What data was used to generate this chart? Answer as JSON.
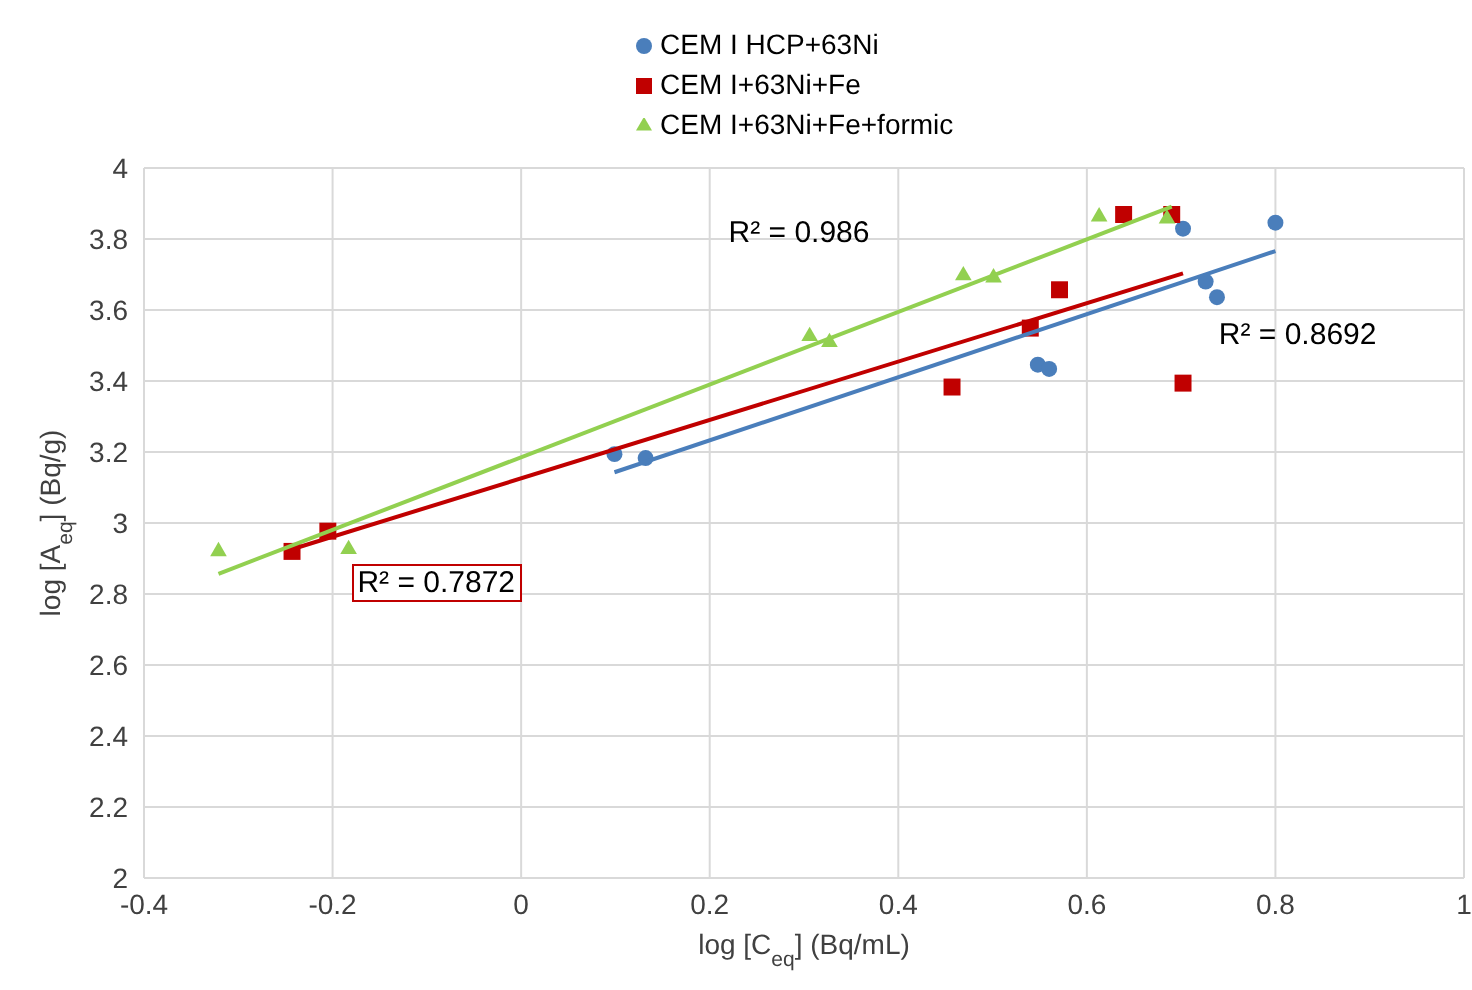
{
  "chart_data": {
    "type": "scatter",
    "xlabel": "log [C$_{eq}$] (Bq/mL)",
    "ylabel": "log [A$_{eq}$] (Bq/g)",
    "xlim": [
      -0.4,
      1
    ],
    "xticks": [
      -0.4,
      -0.2,
      0,
      0.2,
      0.4,
      0.6,
      0.8,
      1
    ],
    "ylim": [
      2,
      4
    ],
    "yticks": [
      2,
      2.2,
      2.4,
      2.6,
      2.8,
      3,
      3.2,
      3.4,
      3.6,
      3.8,
      4
    ],
    "grid": true,
    "legend": "top",
    "annotations": [
      "R² = 0.986",
      "R² = 0.8692",
      "R² = 0.7872"
    ],
    "series": [
      {
        "name": "CEM I HCP+63Ni",
        "color": "#4a7ebb",
        "marker": "circle",
        "x": [
          0.099,
          0.132,
          0.548,
          0.56,
          0.702,
          0.726,
          0.738,
          0.8
        ],
        "values": [
          3.194,
          3.183,
          3.446,
          3.434,
          3.829,
          3.68,
          3.636,
          3.846
        ]
      },
      {
        "name": "CEM I+63Ni+Fe",
        "color": "#c00000",
        "marker": "square",
        "x": [
          -0.243,
          -0.205,
          0.457,
          0.54,
          0.571,
          0.639,
          0.69,
          0.702
        ],
        "values": [
          2.92,
          2.977,
          3.383,
          3.549,
          3.657,
          3.869,
          3.869,
          3.394
        ]
      },
      {
        "name": "CEM I+63Ni+Fe+formic",
        "color": "#92d050",
        "marker": "triangle",
        "x": [
          -0.321,
          -0.183,
          0.306,
          0.327,
          0.469,
          0.501,
          0.613,
          0.685
        ],
        "values": [
          2.92,
          2.926,
          3.526,
          3.509,
          3.697,
          3.691,
          3.863,
          3.857
        ]
      },
      {
        "type": "line",
        "color": "#4a7ebb",
        "x": [
          0.099,
          0.8
        ],
        "values": [
          3.143,
          3.766
        ]
      },
      {
        "type": "line",
        "color": "#c00000",
        "x": [
          -0.243,
          0.702
        ],
        "values": [
          2.926,
          3.703
        ]
      },
      {
        "type": "line",
        "color": "#92d050",
        "x": [
          -0.321,
          0.69
        ],
        "values": [
          2.857,
          3.891
        ]
      }
    ]
  }
}
